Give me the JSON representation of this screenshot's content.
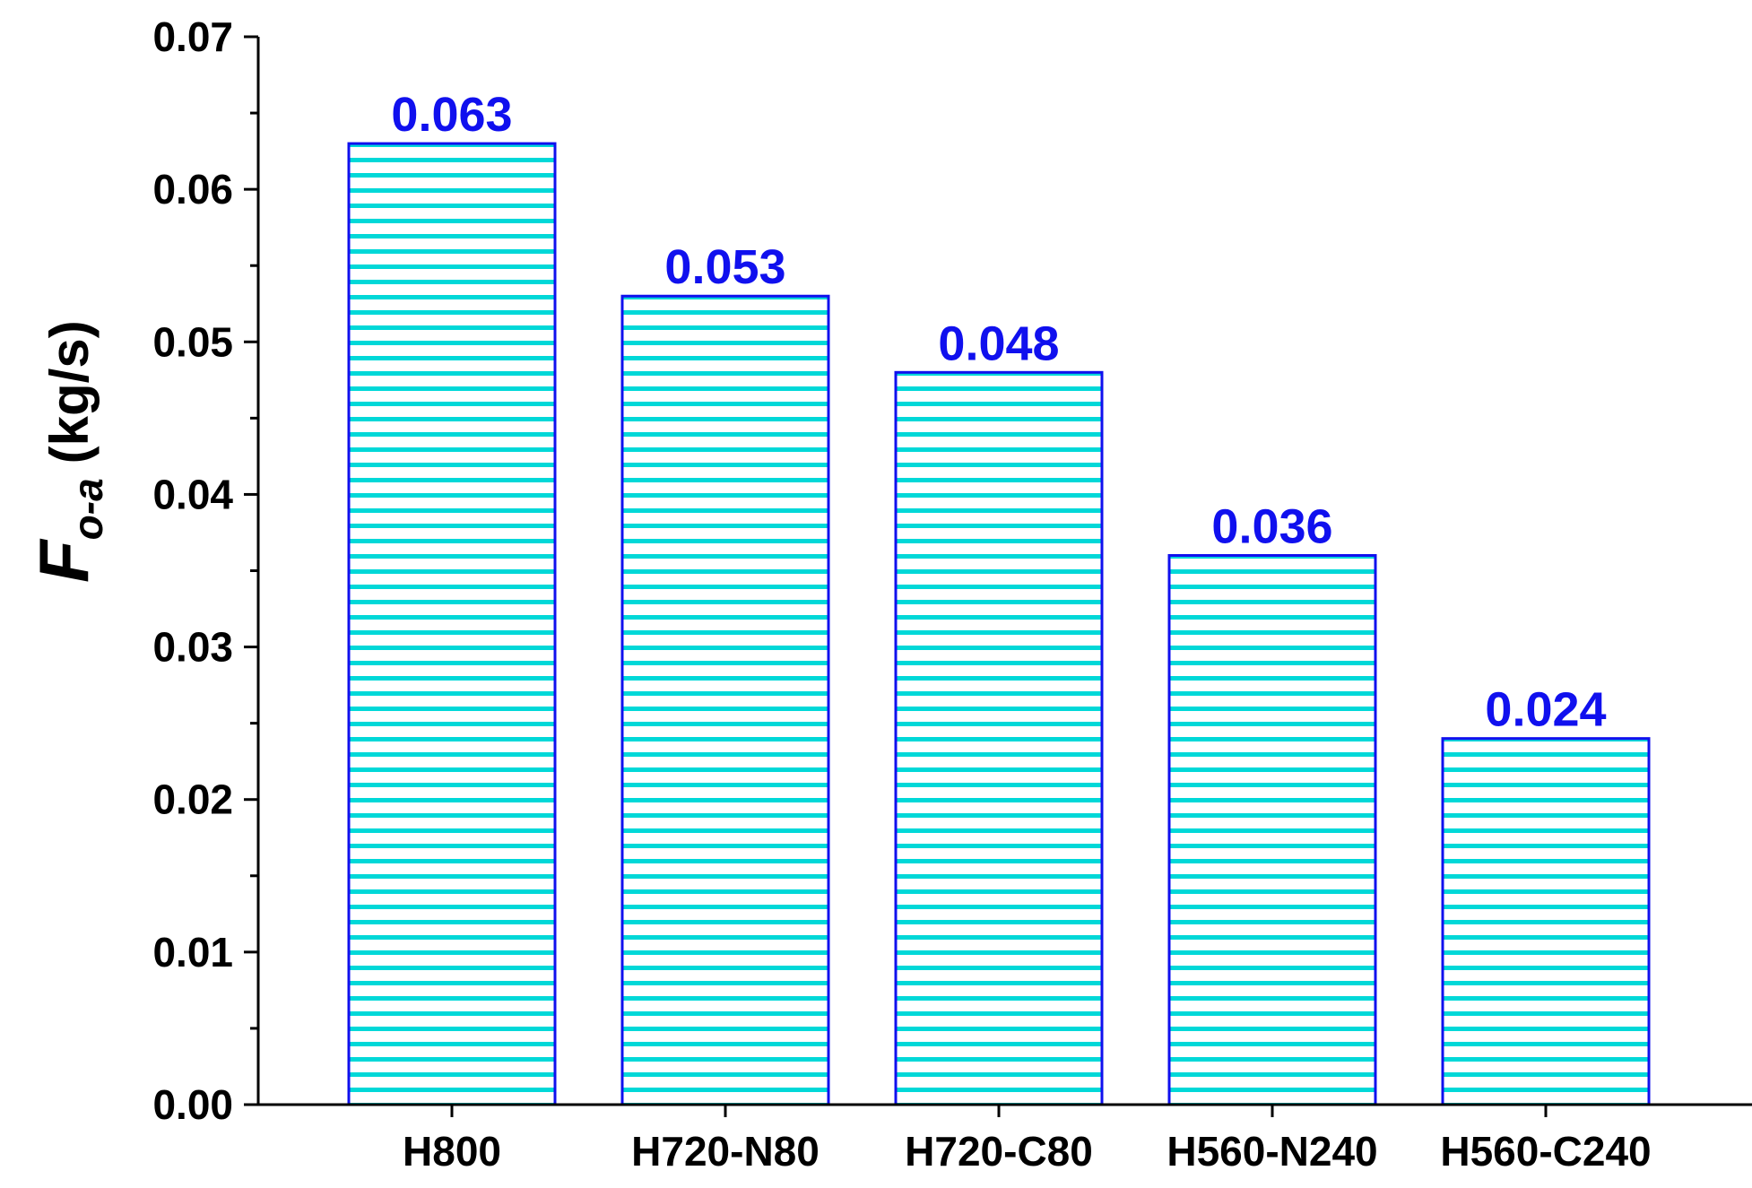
{
  "chart_data": {
    "type": "bar",
    "categories": [
      "H800",
      "H720-N80",
      "H720-C80",
      "H560-N240",
      "H560-C240"
    ],
    "values": [
      0.063,
      0.053,
      0.048,
      0.036,
      0.024
    ],
    "value_labels": [
      "0.063",
      "0.053",
      "0.048",
      "0.036",
      "0.024"
    ],
    "xlabel": "",
    "ylabel": {
      "symbol": "F",
      "subscript": "o-a",
      "unit": "(kg/s)"
    },
    "ylim": [
      0,
      0.07
    ],
    "yticks": [
      "0.00",
      "0.01",
      "0.02",
      "0.03",
      "0.04",
      "0.05",
      "0.06",
      "0.07"
    ],
    "grid": false,
    "legend": "none",
    "colors": {
      "bar_edge": "#1010ee",
      "bar_hatch": "#00d8d8",
      "value_label": "#1010ee",
      "axis": "#000000"
    }
  }
}
